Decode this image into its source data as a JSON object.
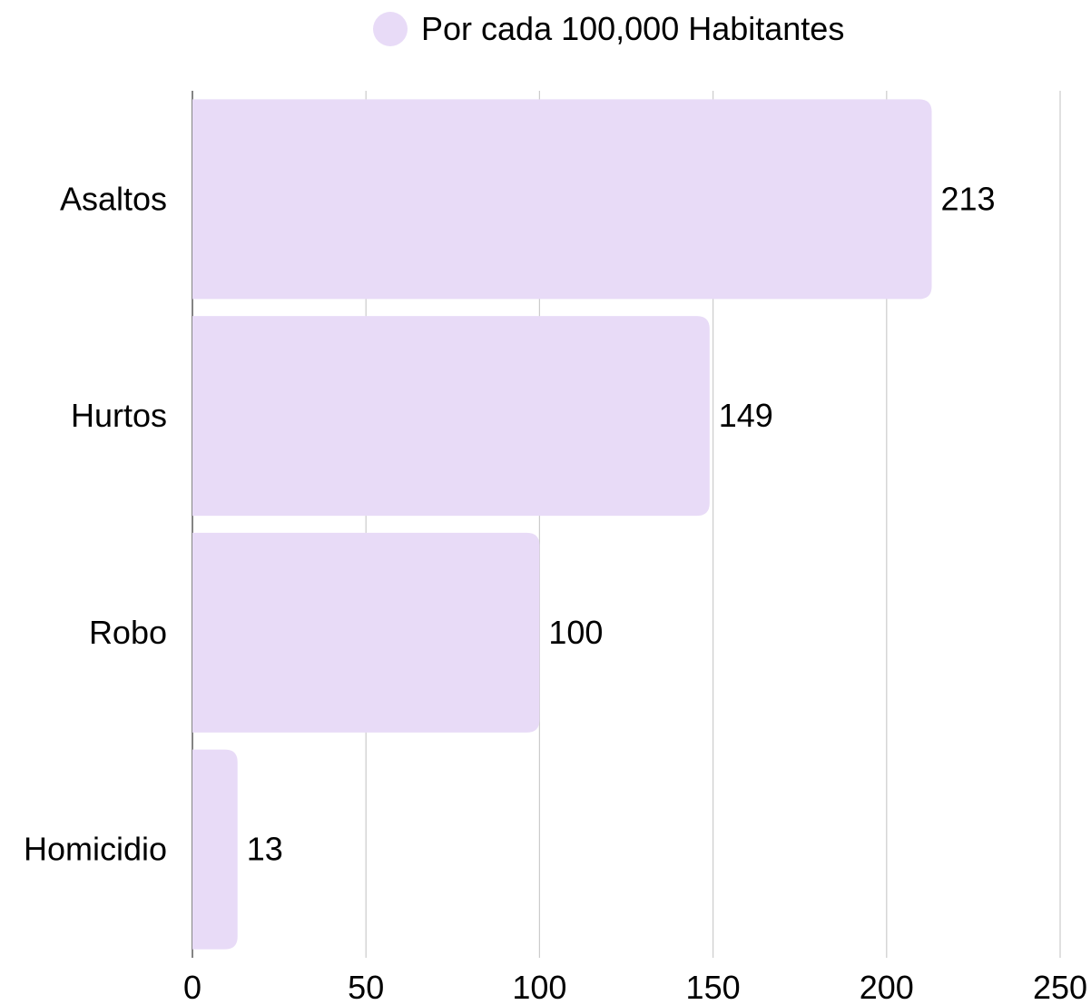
{
  "chart_data": {
    "type": "bar",
    "orientation": "horizontal",
    "categories": [
      "Asaltos",
      "Hurtos",
      "Robo",
      "Homicidio"
    ],
    "series": [
      {
        "name": "Por cada 100,000 Habitantes",
        "values": [
          213,
          149,
          100,
          13
        ]
      }
    ],
    "xlim": [
      0,
      250
    ],
    "xticks": [
      0,
      50,
      100,
      150,
      200,
      250
    ],
    "grid": true,
    "legend_position": "top",
    "bar_color": "#e8dbf7",
    "grid_color": "#cccccc",
    "axis_color": "#333333"
  }
}
